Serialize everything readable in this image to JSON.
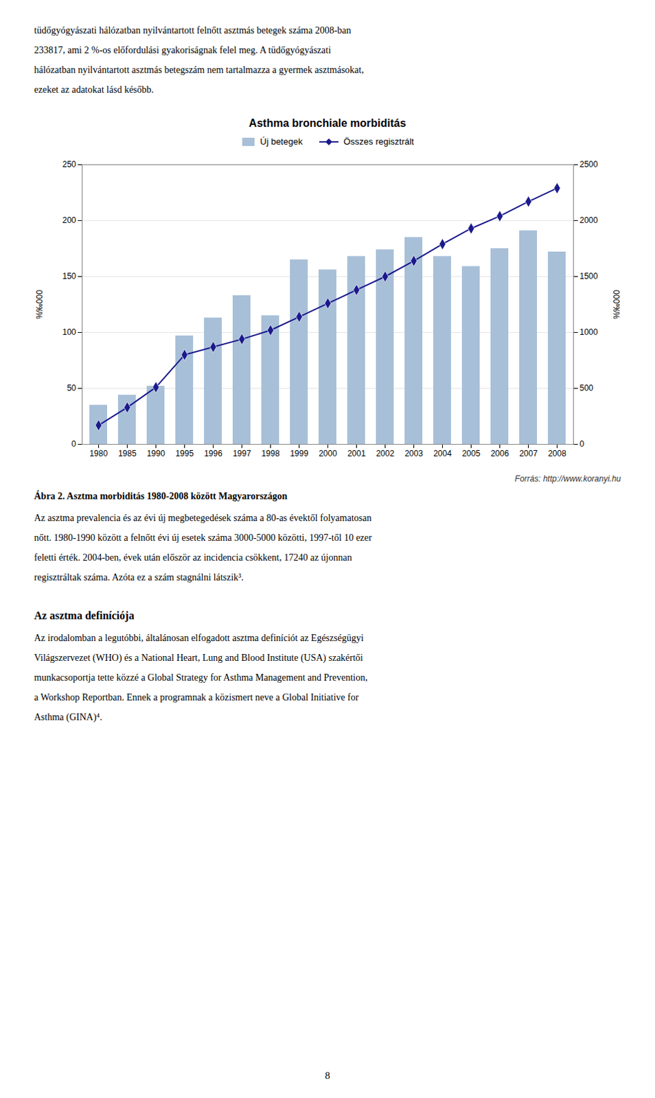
{
  "page_text": {
    "top_paragraph": [
      "tüdőgyógyászati hálózatban nyilvántartott felnőtt asztmás betegek száma 2008-ban",
      "233817, ami 2 %-os előfordulási gyakoriságnak felel meg. A tüdőgyógyászati",
      "hálózatban nyilvántartott asztmás betegszám nem tartalmazza a gyermek asztmásokat,",
      "ezeket az adatokat lásd később."
    ],
    "caption": "Ábra 2. Asztma morbiditás 1980-2008 között Magyarországon",
    "body_paragraph": [
      "Az asztma prevalencia és az évi új megbetegedések száma a 80-as évektől folyamatosan",
      "nőtt. 1980-1990 között a felnőtt évi új esetek száma 3000-5000 közötti, 1997-től 10 ezer",
      "feletti érték. 2004-ben, évek után először az incidencia csökkent, 17240 az újonnan",
      "regisztráltak száma. Azóta ez a szám stagnálni látszik³."
    ],
    "section_title": "Az asztma definíciója",
    "section_body": [
      "Az irodalomban a legutóbbi, általánosan elfogadott asztma definíciót az Egészségügyi",
      "Világszervezet (WHO) és a National Heart, Lung and Blood Institute (USA) szakértői",
      "munkacsoportja tette közzé a Global Strategy for Asthma Management and Prevention,",
      "a Workshop Reportban. Ennek a programnak a közismert neve a Global Initiative for",
      "Asthma (GINA)⁴."
    ],
    "page_number": "8"
  },
  "chart_data": {
    "type": "bar",
    "title": "Asthma bronchiale morbiditás",
    "source": "Forrás: http://www.koranyi.hu",
    "categories": [
      "1980",
      "1985",
      "1990",
      "1995",
      "1996",
      "1997",
      "1998",
      "1999",
      "2000",
      "2001",
      "2002",
      "2003",
      "2004",
      "2005",
      "2006",
      "2007",
      "2008"
    ],
    "series": [
      {
        "name": "Új betegek",
        "type": "bar",
        "color": "#a8bfd8",
        "values": [
          35,
          44,
          52,
          97,
          113,
          133,
          115,
          165,
          156,
          168,
          174,
          185,
          168,
          159,
          175,
          191,
          172
        ]
      },
      {
        "name": "Összes regisztrált",
        "type": "line",
        "axis": "y2",
        "color": "#1a1a8c",
        "marker": "diamond",
        "values": [
          170,
          330,
          510,
          800,
          870,
          940,
          1020,
          1140,
          1260,
          1380,
          1500,
          1640,
          1790,
          1930,
          2040,
          2170,
          2290
        ]
      }
    ],
    "ylabel": "%‰000",
    "y2label": "%‰000",
    "ylim": [
      0,
      250
    ],
    "yticks": [
      0,
      50,
      100,
      150,
      200,
      250
    ],
    "y2lim": [
      0,
      2500
    ],
    "y2ticks": [
      0,
      500,
      1000,
      1500,
      2000,
      2500
    ],
    "grid": true,
    "legend": "top"
  }
}
